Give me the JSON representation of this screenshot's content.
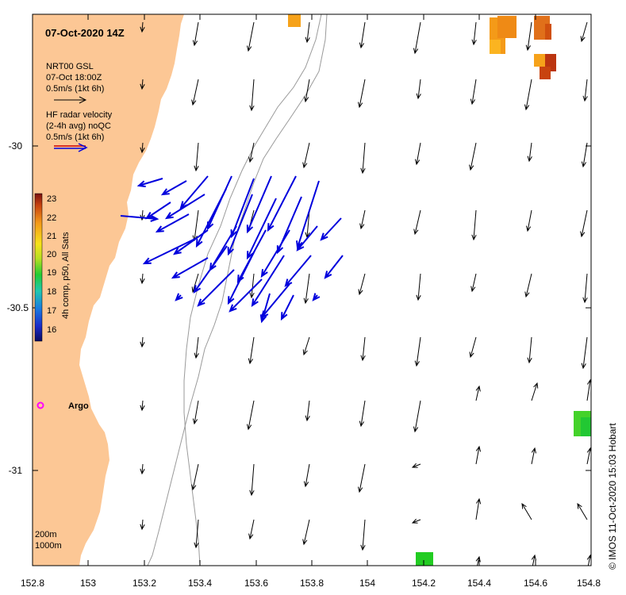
{
  "title": "07-Oct-2020 14Z",
  "legend_model": {
    "line1": "NRT00 GSL",
    "line2": "07-Oct 18:00Z",
    "line3": "0.5m/s (1kt 6h)"
  },
  "legend_radar": {
    "line1": "HF radar velocity",
    "line2": "(2-4h avg) noQC",
    "line3": "0.5m/s (1kt 6h)"
  },
  "colorbar": {
    "label": "4h comp, p50, All Sats",
    "ticks": [
      "23",
      "22",
      "21",
      "20",
      "19",
      "18",
      "17",
      "16"
    ]
  },
  "argo_label": "Argo",
  "depth_labels": [
    "200m",
    "1000m"
  ],
  "credit": "© IMOS 11-Oct-2020 15:03 Hobart",
  "x_ticks": [
    "152.8",
    "153",
    "153.2",
    "153.4",
    "153.6",
    "153.8",
    "154",
    "154.2",
    "154.4",
    "154.6",
    "154.8"
  ],
  "y_ticks": [
    "-30",
    "-30.5",
    "-31"
  ],
  "colors": {
    "land": "#fcc795",
    "model_arrow": "#000000",
    "radar_arrow": "#0000dd",
    "argo": "#ff00ff",
    "isobath": "#9a9a9a"
  }
}
